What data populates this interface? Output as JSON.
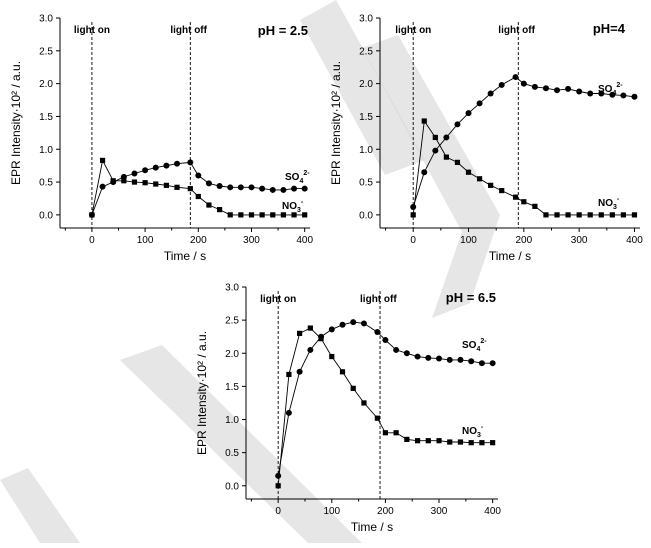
{
  "chart_data": [
    {
      "type": "line",
      "title": "pH = 2.5",
      "xlabel": "Time / s",
      "ylabel": "EPR Intensity·10² / a.u.",
      "xlim": [
        -60,
        410
      ],
      "ylim": [
        -0.2,
        3.0
      ],
      "xticks": [
        0,
        100,
        200,
        300,
        400
      ],
      "yticks": [
        0.0,
        0.5,
        1.0,
        1.5,
        2.0,
        2.5,
        3.0
      ],
      "markers": [
        {
          "x": 0,
          "label": "light on"
        },
        {
          "x": 185,
          "label": "light off"
        }
      ],
      "series": [
        {
          "name": "SO4 2-",
          "label_main": "SO",
          "label_sub": "4",
          "label_sup": "2-",
          "marker": "circle",
          "x": [
            0,
            20,
            40,
            60,
            80,
            100,
            120,
            140,
            160,
            185,
            200,
            220,
            240,
            260,
            280,
            300,
            320,
            340,
            360,
            380,
            400
          ],
          "y": [
            0.0,
            0.43,
            0.5,
            0.58,
            0.63,
            0.68,
            0.72,
            0.75,
            0.78,
            0.8,
            0.6,
            0.48,
            0.44,
            0.42,
            0.42,
            0.42,
            0.4,
            0.38,
            0.38,
            0.4,
            0.4
          ]
        },
        {
          "name": "NO3 -",
          "label_main": "NO",
          "label_sub": "3",
          "label_sup": "-",
          "marker": "square",
          "x": [
            0,
            20,
            40,
            60,
            80,
            100,
            120,
            140,
            160,
            185,
            200,
            220,
            240,
            260,
            280,
            300,
            320,
            340,
            360,
            380,
            400
          ],
          "y": [
            0.0,
            0.83,
            0.52,
            0.52,
            0.5,
            0.49,
            0.47,
            0.45,
            0.42,
            0.4,
            0.28,
            0.15,
            0.08,
            0.0,
            0.0,
            0.0,
            0.0,
            0.0,
            0.0,
            0.0,
            0.0
          ]
        }
      ]
    },
    {
      "type": "line",
      "title": "pH=4",
      "xlabel": "Time / s",
      "ylabel": "EPR Intensity·10² / a.u.",
      "xlim": [
        -60,
        410
      ],
      "ylim": [
        -0.2,
        3.0
      ],
      "xticks": [
        0,
        100,
        200,
        300,
        400
      ],
      "yticks": [
        0.0,
        0.5,
        1.0,
        1.5,
        2.0,
        2.5,
        3.0
      ],
      "markers": [
        {
          "x": 0,
          "label": "light on"
        },
        {
          "x": 190,
          "label": "light off"
        }
      ],
      "series": [
        {
          "name": "SO4 2-",
          "label_main": "SO",
          "label_sub": "4",
          "label_sup": "2-",
          "marker": "circle",
          "x": [
            0,
            20,
            40,
            60,
            80,
            100,
            120,
            140,
            160,
            185,
            200,
            220,
            240,
            260,
            280,
            300,
            320,
            340,
            360,
            380,
            400
          ],
          "y": [
            0.12,
            0.65,
            0.98,
            1.18,
            1.38,
            1.55,
            1.7,
            1.85,
            1.98,
            2.1,
            2.0,
            1.95,
            1.93,
            1.9,
            1.92,
            1.88,
            1.85,
            1.85,
            1.83,
            1.82,
            1.8
          ]
        },
        {
          "name": "NO3 -",
          "label_main": "NO",
          "label_sub": "3",
          "label_sup": "-",
          "marker": "square",
          "x": [
            0,
            20,
            40,
            60,
            80,
            100,
            120,
            140,
            160,
            185,
            200,
            220,
            240,
            260,
            280,
            300,
            320,
            340,
            360,
            380,
            400
          ],
          "y": [
            0.0,
            1.43,
            1.18,
            0.88,
            0.8,
            0.65,
            0.55,
            0.45,
            0.37,
            0.27,
            0.2,
            0.13,
            0.0,
            0.0,
            0.0,
            0.0,
            0.0,
            0.0,
            0.0,
            0.0,
            0.0
          ]
        }
      ]
    },
    {
      "type": "line",
      "title": "pH = 6.5",
      "xlabel": "Time / s",
      "ylabel": "EPR Intensity·10² / a.u.",
      "xlim": [
        -60,
        410
      ],
      "ylim": [
        -0.2,
        3.0
      ],
      "xticks": [
        0,
        100,
        200,
        300,
        400
      ],
      "yticks": [
        0.0,
        0.5,
        1.0,
        1.5,
        2.0,
        2.5,
        3.0
      ],
      "markers": [
        {
          "x": 0,
          "label": "light on"
        },
        {
          "x": 190,
          "label": "light off"
        }
      ],
      "series": [
        {
          "name": "SO4 2-",
          "label_main": "SO",
          "label_sub": "4",
          "label_sup": "2-",
          "marker": "circle",
          "x": [
            0,
            20,
            40,
            60,
            80,
            100,
            120,
            140,
            160,
            185,
            200,
            220,
            240,
            260,
            280,
            300,
            320,
            340,
            360,
            380,
            400
          ],
          "y": [
            0.15,
            1.1,
            1.72,
            2.05,
            2.25,
            2.36,
            2.43,
            2.47,
            2.45,
            2.32,
            2.2,
            2.05,
            2.0,
            1.95,
            1.93,
            1.92,
            1.9,
            1.9,
            1.88,
            1.85,
            1.85
          ]
        },
        {
          "name": "NO3 -",
          "label_main": "NO",
          "label_sub": "3",
          "label_sup": "-",
          "marker": "square",
          "x": [
            0,
            20,
            40,
            60,
            80,
            100,
            120,
            140,
            160,
            185,
            200,
            220,
            240,
            260,
            280,
            300,
            320,
            340,
            360,
            380,
            400
          ],
          "y": [
            0.0,
            1.68,
            2.3,
            2.38,
            2.22,
            1.95,
            1.72,
            1.47,
            1.25,
            1.02,
            0.8,
            0.8,
            0.7,
            0.68,
            0.68,
            0.68,
            0.66,
            0.66,
            0.65,
            0.65,
            0.65
          ]
        }
      ]
    }
  ]
}
